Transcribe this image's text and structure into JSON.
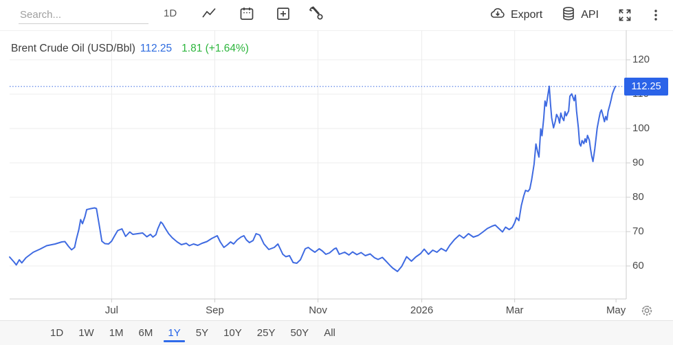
{
  "toolbar": {
    "search_placeholder": "Search...",
    "interval_label": "1D",
    "export_label": "Export",
    "api_label": "API"
  },
  "legend": {
    "title": "Brent Crude Oil (USD/Bbl)",
    "price": "112.25",
    "change": "1.81 (+1.64%)"
  },
  "price_tag_label": "112.25",
  "colors": {
    "line": "#3e6ae1",
    "ref_dotted": "#5b82e8",
    "tag_bg": "#2b63e8",
    "price_text": "#2d6bdf",
    "change_text": "#2cb53c",
    "grid": "#ececec",
    "axis": "#cccccc",
    "tick_label": "#4a4a4a",
    "icon": "#3f3f3f"
  },
  "chart_data": {
    "type": "line",
    "title": "Brent Crude Oil (USD/Bbl)",
    "unit": "USD/Bbl",
    "last_price": 112.25,
    "change_abs": 1.81,
    "change_pct": "+1.64%",
    "range_shown": "1Y",
    "grid": true,
    "legend_position": "top-left",
    "ylim": [
      50.4,
      128.6
    ],
    "y_ticks": [
      120,
      110,
      100,
      90,
      80,
      70,
      60
    ],
    "x_ticks": [
      {
        "label": "Jul",
        "f": 0.168,
        "grid": true
      },
      {
        "label": "Sep",
        "f": 0.338,
        "grid": true
      },
      {
        "label": "Nov",
        "f": 0.508,
        "grid": true
      },
      {
        "label": "2026",
        "f": 0.679,
        "grid": true
      },
      {
        "label": "Mar",
        "f": 0.832,
        "grid": true
      },
      {
        "label": "May",
        "f": 0.999,
        "grid": false
      }
    ],
    "ref_line": 112.25,
    "series": [
      {
        "name": "Brent Crude Oil (USD/Bbl)",
        "points": [
          [
            0.0,
            62.6
          ],
          [
            0.007,
            61.2
          ],
          [
            0.011,
            60.3
          ],
          [
            0.016,
            61.8
          ],
          [
            0.02,
            60.9
          ],
          [
            0.027,
            62.4
          ],
          [
            0.039,
            64.0
          ],
          [
            0.05,
            64.9
          ],
          [
            0.061,
            65.9
          ],
          [
            0.075,
            66.4
          ],
          [
            0.086,
            67.0
          ],
          [
            0.091,
            67.1
          ],
          [
            0.097,
            65.7
          ],
          [
            0.102,
            64.7
          ],
          [
            0.107,
            65.4
          ],
          [
            0.11,
            67.8
          ],
          [
            0.114,
            70.6
          ],
          [
            0.117,
            73.5
          ],
          [
            0.12,
            72.3
          ],
          [
            0.124,
            74.3
          ],
          [
            0.127,
            76.4
          ],
          [
            0.134,
            76.7
          ],
          [
            0.14,
            76.9
          ],
          [
            0.143,
            76.7
          ],
          [
            0.148,
            71.5
          ],
          [
            0.152,
            67.2
          ],
          [
            0.157,
            66.5
          ],
          [
            0.163,
            66.4
          ],
          [
            0.168,
            67.2
          ],
          [
            0.173,
            68.8
          ],
          [
            0.178,
            70.3
          ],
          [
            0.185,
            70.8
          ],
          [
            0.191,
            68.6
          ],
          [
            0.198,
            69.9
          ],
          [
            0.203,
            69.2
          ],
          [
            0.211,
            69.4
          ],
          [
            0.219,
            69.6
          ],
          [
            0.226,
            68.5
          ],
          [
            0.232,
            69.2
          ],
          [
            0.236,
            68.4
          ],
          [
            0.241,
            69.1
          ],
          [
            0.244,
            70.8
          ],
          [
            0.249,
            72.8
          ],
          [
            0.252,
            72.3
          ],
          [
            0.257,
            70.8
          ],
          [
            0.262,
            69.4
          ],
          [
            0.268,
            68.2
          ],
          [
            0.276,
            67.0
          ],
          [
            0.283,
            66.2
          ],
          [
            0.291,
            66.6
          ],
          [
            0.296,
            65.9
          ],
          [
            0.303,
            66.4
          ],
          [
            0.31,
            66.0
          ],
          [
            0.317,
            66.6
          ],
          [
            0.325,
            67.1
          ],
          [
            0.333,
            68.0
          ],
          [
            0.342,
            68.8
          ],
          [
            0.347,
            67.0
          ],
          [
            0.353,
            65.4
          ],
          [
            0.359,
            66.2
          ],
          [
            0.364,
            67.0
          ],
          [
            0.369,
            66.4
          ],
          [
            0.375,
            67.6
          ],
          [
            0.381,
            68.4
          ],
          [
            0.386,
            68.8
          ],
          [
            0.39,
            67.6
          ],
          [
            0.395,
            66.8
          ],
          [
            0.401,
            67.4
          ],
          [
            0.406,
            69.4
          ],
          [
            0.412,
            69.0
          ],
          [
            0.419,
            66.4
          ],
          [
            0.427,
            64.8
          ],
          [
            0.436,
            65.4
          ],
          [
            0.442,
            66.4
          ],
          [
            0.45,
            63.4
          ],
          [
            0.455,
            62.7
          ],
          [
            0.461,
            63.0
          ],
          [
            0.467,
            61.0
          ],
          [
            0.473,
            60.8
          ],
          [
            0.479,
            61.8
          ],
          [
            0.487,
            65.0
          ],
          [
            0.492,
            65.4
          ],
          [
            0.497,
            64.7
          ],
          [
            0.503,
            64.0
          ],
          [
            0.51,
            65.0
          ],
          [
            0.515,
            64.4
          ],
          [
            0.521,
            63.4
          ],
          [
            0.527,
            63.8
          ],
          [
            0.535,
            65.0
          ],
          [
            0.538,
            65.2
          ],
          [
            0.543,
            63.4
          ],
          [
            0.552,
            64.0
          ],
          [
            0.559,
            63.2
          ],
          [
            0.565,
            64.1
          ],
          [
            0.572,
            63.3
          ],
          [
            0.579,
            63.9
          ],
          [
            0.586,
            63.0
          ],
          [
            0.594,
            63.5
          ],
          [
            0.601,
            62.4
          ],
          [
            0.607,
            61.9
          ],
          [
            0.614,
            62.5
          ],
          [
            0.62,
            61.4
          ],
          [
            0.627,
            60.1
          ],
          [
            0.631,
            59.4
          ],
          [
            0.639,
            58.4
          ],
          [
            0.646,
            59.9
          ],
          [
            0.654,
            62.7
          ],
          [
            0.662,
            61.4
          ],
          [
            0.669,
            62.6
          ],
          [
            0.677,
            63.6
          ],
          [
            0.683,
            64.9
          ],
          [
            0.69,
            63.4
          ],
          [
            0.697,
            64.6
          ],
          [
            0.704,
            64.0
          ],
          [
            0.711,
            65.1
          ],
          [
            0.719,
            64.3
          ],
          [
            0.725,
            66.0
          ],
          [
            0.733,
            67.7
          ],
          [
            0.741,
            69.0
          ],
          [
            0.748,
            68.1
          ],
          [
            0.756,
            69.4
          ],
          [
            0.764,
            68.4
          ],
          [
            0.772,
            68.9
          ],
          [
            0.779,
            69.8
          ],
          [
            0.787,
            70.9
          ],
          [
            0.795,
            71.6
          ],
          [
            0.8,
            71.9
          ],
          [
            0.806,
            70.9
          ],
          [
            0.812,
            69.9
          ],
          [
            0.817,
            71.3
          ],
          [
            0.823,
            70.6
          ],
          [
            0.828,
            71.2
          ],
          [
            0.832,
            72.6
          ],
          [
            0.835,
            74.1
          ],
          [
            0.839,
            73.2
          ],
          [
            0.843,
            77.6
          ],
          [
            0.847,
            80.4
          ],
          [
            0.85,
            82.0
          ],
          [
            0.854,
            81.7
          ],
          [
            0.857,
            82.4
          ],
          [
            0.86,
            85.1
          ],
          [
            0.864,
            89.6
          ],
          [
            0.867,
            95.5
          ],
          [
            0.87,
            93.1
          ],
          [
            0.872,
            91.7
          ],
          [
            0.875,
            99.9
          ],
          [
            0.877,
            97.9
          ],
          [
            0.88,
            103.1
          ],
          [
            0.882,
            108.0
          ],
          [
            0.884,
            106.5
          ],
          [
            0.887,
            110.0
          ],
          [
            0.889,
            112.3
          ],
          [
            0.891,
            107.1
          ],
          [
            0.893,
            103.1
          ],
          [
            0.896,
            100.2
          ],
          [
            0.899,
            102.1
          ],
          [
            0.901,
            104.1
          ],
          [
            0.904,
            103.1
          ],
          [
            0.906,
            101.6
          ],
          [
            0.908,
            104.5
          ],
          [
            0.91,
            103.3
          ],
          [
            0.913,
            102.3
          ],
          [
            0.915,
            104.9
          ],
          [
            0.917,
            103.7
          ],
          [
            0.921,
            105.1
          ],
          [
            0.923,
            109.4
          ],
          [
            0.926,
            110.1
          ],
          [
            0.93,
            108.1
          ],
          [
            0.932,
            109.7
          ],
          [
            0.934,
            105.1
          ],
          [
            0.937,
            100.1
          ],
          [
            0.939,
            95.6
          ],
          [
            0.941,
            94.9
          ],
          [
            0.943,
            96.5
          ],
          [
            0.946,
            95.6
          ],
          [
            0.948,
            97.0
          ],
          [
            0.95,
            96.0
          ],
          [
            0.952,
            98.0
          ],
          [
            0.955,
            96.6
          ],
          [
            0.957,
            94.1
          ],
          [
            0.959,
            91.9
          ],
          [
            0.961,
            90.4
          ],
          [
            0.964,
            94.0
          ],
          [
            0.966,
            97.1
          ],
          [
            0.968,
            100.1
          ],
          [
            0.971,
            103.0
          ],
          [
            0.973,
            104.7
          ],
          [
            0.975,
            105.4
          ],
          [
            0.977,
            104.1
          ],
          [
            0.98,
            102.0
          ],
          [
            0.982,
            103.5
          ],
          [
            0.984,
            102.5
          ],
          [
            0.986,
            105.0
          ],
          [
            0.989,
            107.0
          ],
          [
            0.991,
            108.5
          ],
          [
            0.993,
            110.1
          ],
          [
            0.996,
            111.5
          ],
          [
            0.998,
            112.25
          ]
        ]
      }
    ]
  },
  "range_selector": {
    "options": [
      {
        "label": "1D",
        "active": false
      },
      {
        "label": "1W",
        "active": false
      },
      {
        "label": "1M",
        "active": false
      },
      {
        "label": "6M",
        "active": false
      },
      {
        "label": "1Y",
        "active": true
      },
      {
        "label": "5Y",
        "active": false
      },
      {
        "label": "10Y",
        "active": false
      },
      {
        "label": "25Y",
        "active": false
      },
      {
        "label": "50Y",
        "active": false
      },
      {
        "label": "All",
        "active": false
      }
    ]
  },
  "icons": {
    "toolbar": [
      "line-chart-icon",
      "calendar-icon",
      "add-indicator-icon",
      "tools-icon"
    ],
    "right": [
      "export-cloud-icon",
      "api-database-icon",
      "fullscreen-icon",
      "kebab-menu-icon"
    ],
    "corner": "gear-icon"
  }
}
